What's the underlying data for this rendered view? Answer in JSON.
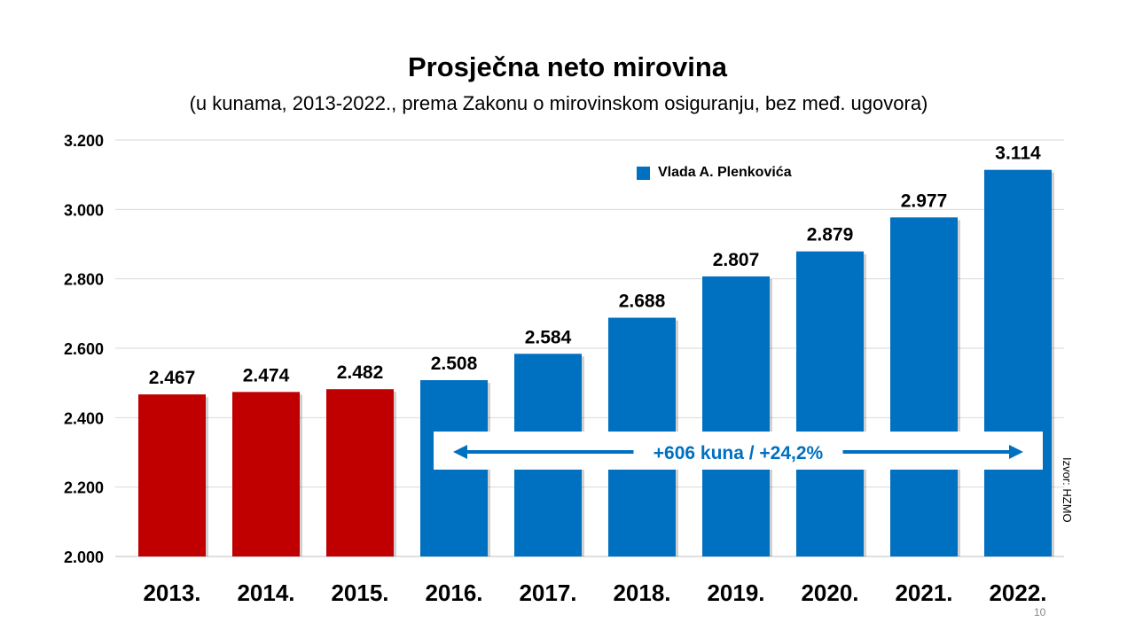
{
  "chart_data": {
    "type": "bar",
    "title": "Prosječna neto mirovina",
    "subtitle": "(u kunama, 2013-2022., prema Zakonu o mirovinskom osiguranju, bez međ. ugovora)",
    "categories": [
      "2013.",
      "2014.",
      "2015.",
      "2016.",
      "2017.",
      "2018.",
      "2019.",
      "2020.",
      "2021.",
      "2022."
    ],
    "values": [
      2467,
      2474,
      2482,
      2508,
      2584,
      2688,
      2807,
      2879,
      2977,
      3114
    ],
    "value_labels": [
      "2.467",
      "2.474",
      "2.482",
      "2.508",
      "2.584",
      "2.688",
      "2.807",
      "2.879",
      "2.977",
      "3.114"
    ],
    "bar_colors": [
      "#c00000",
      "#c00000",
      "#c00000",
      "#0070c0",
      "#0070c0",
      "#0070c0",
      "#0070c0",
      "#0070c0",
      "#0070c0",
      "#0070c0"
    ],
    "ylim": [
      2000,
      3200
    ],
    "yticks": [
      2000,
      2200,
      2400,
      2600,
      2800,
      3000,
      3200
    ],
    "ytick_labels": [
      "2.000",
      "2.200",
      "2.400",
      "2.600",
      "2.800",
      "3.000",
      "3.200"
    ],
    "grid": true,
    "legend": {
      "label": "Vlada A. Plenkovića",
      "color": "#0070c0",
      "placement": "top-right"
    },
    "annotation": {
      "text": "+606 kuna / +24,2%",
      "from_category": "2016.",
      "to_category": "2022."
    },
    "source": "Izvor: HZMO"
  },
  "page_number": "10"
}
